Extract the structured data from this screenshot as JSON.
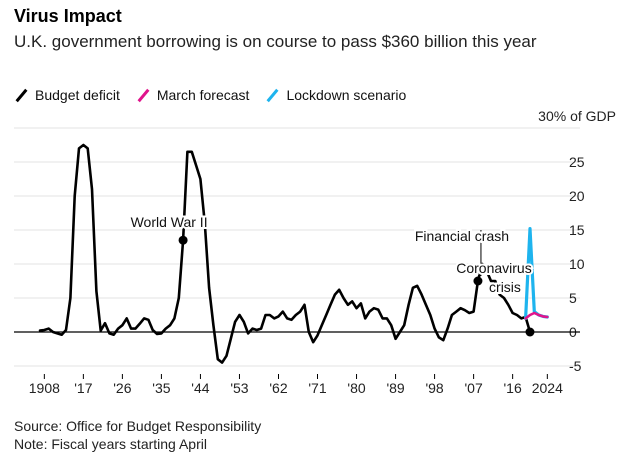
{
  "header": {
    "title": "Virus Impact",
    "subtitle": "U.K. government borrowing is on course to pass $360 billion this year"
  },
  "footer": {
    "source": "Source: Office for Budget Responsibility",
    "note": "Note: Fiscal years starting April"
  },
  "chart_data": {
    "type": "line",
    "title": "Virus Impact",
    "subtitle": "U.K. government borrowing is on course to pass $360 billion this year",
    "ylabel": "30% of GDP",
    "ylim": [
      -5,
      30
    ],
    "xlim": [
      1907,
      2026
    ],
    "yticks": [
      {
        "value": 25,
        "label": "25"
      },
      {
        "value": 20,
        "label": "20"
      },
      {
        "value": 15,
        "label": "15"
      },
      {
        "value": 10,
        "label": "10"
      },
      {
        "value": 5,
        "label": "5"
      },
      {
        "value": 0,
        "label": "0"
      },
      {
        "value": -5,
        "label": "-5"
      }
    ],
    "xticks": [
      {
        "value": 1908,
        "label": "1908"
      },
      {
        "value": 1917,
        "label": "'17"
      },
      {
        "value": 1926,
        "label": "'26"
      },
      {
        "value": 1935,
        "label": "'35"
      },
      {
        "value": 1944,
        "label": "'44"
      },
      {
        "value": 1953,
        "label": "'53"
      },
      {
        "value": 1962,
        "label": "'62"
      },
      {
        "value": 1971,
        "label": "'71"
      },
      {
        "value": 1980,
        "label": "'80"
      },
      {
        "value": 1989,
        "label": "'89"
      },
      {
        "value": 1998,
        "label": "'98"
      },
      {
        "value": 2007,
        "label": "'07"
      },
      {
        "value": 2016,
        "label": "'16"
      },
      {
        "value": 2024,
        "label": "2024"
      }
    ],
    "legend_position": "top-left",
    "series": [
      {
        "name": "Budget deficit",
        "color": "#000000",
        "points": [
          [
            1907,
            0.2
          ],
          [
            1908,
            0.3
          ],
          [
            1909,
            0.5
          ],
          [
            1910,
            0
          ],
          [
            1911,
            -0.2
          ],
          [
            1912,
            -0.4
          ],
          [
            1913,
            0.3
          ],
          [
            1914,
            5
          ],
          [
            1915,
            20
          ],
          [
            1916,
            27
          ],
          [
            1917,
            27.5
          ],
          [
            1918,
            27
          ],
          [
            1919,
            21
          ],
          [
            1920,
            6
          ],
          [
            1921,
            0.2
          ],
          [
            1922,
            1.3
          ],
          [
            1923,
            -0.2
          ],
          [
            1924,
            -0.4
          ],
          [
            1925,
            0.5
          ],
          [
            1926,
            1
          ],
          [
            1927,
            2
          ],
          [
            1928,
            0.5
          ],
          [
            1929,
            0.5
          ],
          [
            1930,
            1.2
          ],
          [
            1931,
            2
          ],
          [
            1932,
            1.8
          ],
          [
            1933,
            0.3
          ],
          [
            1934,
            -0.3
          ],
          [
            1935,
            -0.2
          ],
          [
            1936,
            0.5
          ],
          [
            1937,
            1
          ],
          [
            1938,
            2
          ],
          [
            1939,
            5
          ],
          [
            1940,
            13.5
          ],
          [
            1941,
            26.5
          ],
          [
            1942,
            26.5
          ],
          [
            1943,
            24.5
          ],
          [
            1944,
            22.5
          ],
          [
            1945,
            16
          ],
          [
            1946,
            6.5
          ],
          [
            1947,
            1
          ],
          [
            1948,
            -4
          ],
          [
            1949,
            -4.5
          ],
          [
            1950,
            -3.5
          ],
          [
            1951,
            -1
          ],
          [
            1952,
            1.5
          ],
          [
            1953,
            2.5
          ],
          [
            1954,
            1.5
          ],
          [
            1955,
            -0.2
          ],
          [
            1956,
            0.5
          ],
          [
            1957,
            0.3
          ],
          [
            1958,
            0.5
          ],
          [
            1959,
            2.5
          ],
          [
            1960,
            2.5
          ],
          [
            1961,
            2
          ],
          [
            1962,
            2.3
          ],
          [
            1963,
            3
          ],
          [
            1964,
            2
          ],
          [
            1965,
            1.8
          ],
          [
            1966,
            2.5
          ],
          [
            1967,
            3
          ],
          [
            1968,
            4
          ],
          [
            1969,
            0
          ],
          [
            1970,
            -1.5
          ],
          [
            1971,
            -0.5
          ],
          [
            1972,
            1
          ],
          [
            1973,
            2.5
          ],
          [
            1974,
            4
          ],
          [
            1975,
            5.5
          ],
          [
            1976,
            6.2
          ],
          [
            1977,
            5
          ],
          [
            1978,
            4
          ],
          [
            1979,
            4.5
          ],
          [
            1980,
            3.5
          ],
          [
            1981,
            4.2
          ],
          [
            1982,
            2
          ],
          [
            1983,
            3
          ],
          [
            1984,
            3.5
          ],
          [
            1985,
            3.3
          ],
          [
            1986,
            2
          ],
          [
            1987,
            2
          ],
          [
            1988,
            1
          ],
          [
            1989,
            -1
          ],
          [
            1990,
            0
          ],
          [
            1991,
            1
          ],
          [
            1992,
            4
          ],
          [
            1993,
            6.5
          ],
          [
            1994,
            6.8
          ],
          [
            1995,
            5.5
          ],
          [
            1996,
            4
          ],
          [
            1997,
            2.5
          ],
          [
            1998,
            0.5
          ],
          [
            1999,
            -0.8
          ],
          [
            2000,
            -1.2
          ],
          [
            2001,
            0.5
          ],
          [
            2002,
            2.5
          ],
          [
            2003,
            3
          ],
          [
            2004,
            3.5
          ],
          [
            2005,
            3.2
          ],
          [
            2006,
            2.8
          ],
          [
            2007,
            3
          ],
          [
            2008,
            7.5
          ],
          [
            2009,
            10
          ],
          [
            2010,
            9
          ],
          [
            2011,
            7.5
          ],
          [
            2012,
            7.5
          ],
          [
            2013,
            5.5
          ],
          [
            2014,
            5
          ],
          [
            2015,
            4
          ],
          [
            2016,
            2.8
          ],
          [
            2017,
            2.5
          ],
          [
            2018,
            2
          ],
          [
            2019,
            2.2
          ],
          [
            2020,
            0
          ]
        ]
      },
      {
        "name": "March forecast",
        "color": "#e0148c",
        "points": [
          [
            2019,
            2
          ],
          [
            2020,
            2.5
          ],
          [
            2021,
            2.8
          ],
          [
            2022,
            2.5
          ],
          [
            2023,
            2.3
          ],
          [
            2024,
            2.2
          ]
        ]
      },
      {
        "name": "Lockdown scenario",
        "color": "#1eb4ee",
        "points": [
          [
            2019,
            2
          ],
          [
            2020,
            15.2
          ],
          [
            2021,
            3
          ],
          [
            2022,
            2.5
          ],
          [
            2023,
            2.3
          ],
          [
            2024,
            2.2
          ]
        ]
      }
    ],
    "markers": [
      {
        "name": "World War II",
        "x": 1940,
        "y": 13.5
      },
      {
        "name": "Financial crash",
        "x": 2008,
        "y": 7.5
      },
      {
        "name": "Coronavirus crisis",
        "x": 2020,
        "y": 0
      }
    ],
    "annotations": [
      {
        "text": "World War II"
      },
      {
        "text": "Financial crash"
      },
      {
        "text": "Coronavirus crisis",
        "lines": [
          "Coronavirus",
          "crisis"
        ]
      }
    ]
  }
}
